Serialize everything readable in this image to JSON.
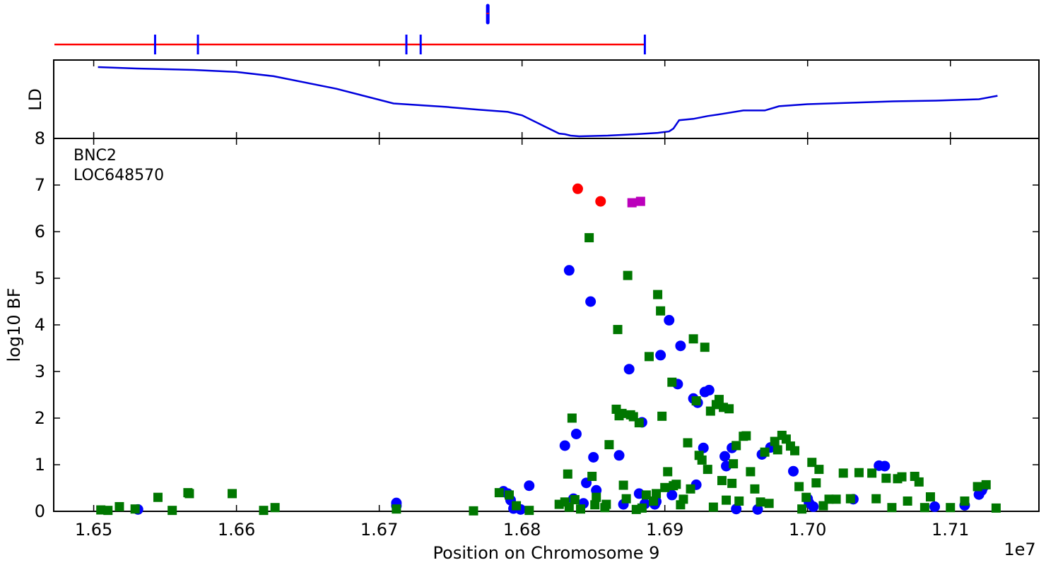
{
  "chart_data": {
    "type": "scatter",
    "xlabel": "Position on Chromosome 9",
    "x_offset_label": "1e7",
    "xlim": [
      1.6472,
      1.7162
    ],
    "x_ticks": [
      1.65,
      1.66,
      1.67,
      1.68,
      1.69,
      1.7,
      1.71
    ],
    "x_tick_labels": [
      "1.65",
      "1.66",
      "1.67",
      "1.68",
      "1.69",
      "1.70",
      "1.71"
    ],
    "genes": [
      "BNC2",
      "LOC648570"
    ],
    "gene_track": {
      "gene_span": [
        1.65,
        1.6886
      ],
      "gene_color": "#ff0000",
      "exon_color": "#0000ff",
      "exons": [
        1.6543,
        1.6573,
        1.6719,
        1.6729,
        1.6886
      ],
      "snp_marker_x": 1.6776
    },
    "ld_panel": {
      "ylabel": "LD",
      "ylim": [
        0,
        1
      ],
      "color": "#0000dd",
      "x": [
        1.6503,
        1.653,
        1.657,
        1.66,
        1.6626,
        1.667,
        1.671,
        1.6747,
        1.677,
        1.679,
        1.68,
        1.6815,
        1.6826,
        1.683,
        1.6834,
        1.684,
        1.686,
        1.688,
        1.6895,
        1.6903,
        1.6906,
        1.691,
        1.692,
        1.693,
        1.694,
        1.6955,
        1.697,
        1.698,
        1.7,
        1.703,
        1.706,
        1.709,
        1.712,
        1.7133
      ],
      "y": [
        1.0,
        0.98,
        0.96,
        0.93,
        0.87,
        0.69,
        0.48,
        0.43,
        0.39,
        0.36,
        0.31,
        0.16,
        0.05,
        0.04,
        0.02,
        0.01,
        0.02,
        0.04,
        0.06,
        0.08,
        0.12,
        0.24,
        0.26,
        0.3,
        0.33,
        0.38,
        0.38,
        0.44,
        0.47,
        0.49,
        0.51,
        0.52,
        0.54,
        0.59
      ]
    },
    "ylabel": "log10 BF",
    "ylim": [
      0,
      8
    ],
    "y_ticks": [
      0,
      1,
      2,
      3,
      4,
      5,
      6,
      7,
      8
    ],
    "series": [
      {
        "marker": "circle",
        "color": "#0000ff",
        "x": [
          1.6531,
          1.6712,
          1.6712,
          1.6787,
          1.679,
          1.6792,
          1.6794,
          1.6799,
          1.6805,
          1.683,
          1.6833,
          1.6836,
          1.6838,
          1.6843,
          1.6845,
          1.6848,
          1.685,
          1.6852,
          1.6868,
          1.6871,
          1.6875,
          1.6882,
          1.6884,
          1.6886,
          1.6893,
          1.6894,
          1.6897,
          1.6903,
          1.6905,
          1.6909,
          1.6911,
          1.692,
          1.6922,
          1.6923,
          1.6927,
          1.6928,
          1.6931,
          1.6942,
          1.6943,
          1.6947,
          1.695,
          1.6965,
          1.6968,
          1.6974,
          1.699,
          1.7,
          1.7001,
          1.7004,
          1.7032,
          1.705,
          1.7054,
          1.7089,
          1.711,
          1.712,
          1.7122,
          1.7123
        ],
        "y": [
          0.04,
          0.18,
          0.12,
          0.43,
          0.38,
          0.24,
          0.06,
          0.04,
          0.55,
          1.41,
          5.17,
          0.27,
          1.66,
          0.17,
          0.61,
          4.5,
          1.16,
          0.45,
          1.2,
          0.15,
          3.05,
          0.38,
          1.91,
          0.16,
          0.15,
          0.21,
          3.35,
          4.1,
          0.35,
          2.73,
          3.55,
          2.42,
          0.57,
          2.33,
          1.36,
          2.56,
          2.6,
          1.18,
          0.97,
          1.36,
          0.05,
          0.04,
          1.22,
          1.37,
          0.86,
          0.27,
          0.18,
          0.1,
          0.26,
          0.98,
          0.97,
          0.1,
          0.13,
          0.36,
          0.45,
          0.52
        ]
      },
      {
        "marker": "circle",
        "color": "#ff0000",
        "x": [
          1.6839,
          1.6855
        ],
        "y": [
          6.92,
          6.65
        ]
      },
      {
        "marker": "square",
        "color": "#bb00bb",
        "x": [
          1.6877,
          1.6883
        ],
        "y": [
          6.62,
          6.65
        ]
      },
      {
        "marker": "square",
        "color": "#007700",
        "x": [
          1.6505,
          1.651,
          1.6518,
          1.6529,
          1.6545,
          1.6555,
          1.6566,
          1.6567,
          1.6597,
          1.6619,
          1.6627,
          1.6712,
          1.6766,
          1.6784,
          1.6791,
          1.6796,
          1.6805,
          1.6826,
          1.683,
          1.6832,
          1.6833,
          1.6835,
          1.6837,
          1.6841,
          1.6847,
          1.6849,
          1.6851,
          1.6852,
          1.6858,
          1.6859,
          1.6861,
          1.6866,
          1.6867,
          1.6868,
          1.687,
          1.6871,
          1.6873,
          1.6874,
          1.6876,
          1.6878,
          1.688,
          1.6882,
          1.6884,
          1.6887,
          1.6889,
          1.6892,
          1.6894,
          1.6895,
          1.6897,
          1.6898,
          1.69,
          1.6902,
          1.6905,
          1.6906,
          1.6908,
          1.6911,
          1.6913,
          1.6916,
          1.6918,
          1.692,
          1.6922,
          1.6924,
          1.6926,
          1.6928,
          1.693,
          1.6932,
          1.6934,
          1.6936,
          1.6938,
          1.694,
          1.6941,
          1.6943,
          1.6945,
          1.6947,
          1.6948,
          1.695,
          1.6952,
          1.6955,
          1.6957,
          1.696,
          1.6963,
          1.6967,
          1.697,
          1.6973,
          1.6977,
          1.6979,
          1.6982,
          1.6985,
          1.6988,
          1.6991,
          1.6994,
          1.6996,
          1.6999,
          1.7003,
          1.7006,
          1.7008,
          1.7011,
          1.7015,
          1.702,
          1.7025,
          1.703,
          1.7036,
          1.7045,
          1.7048,
          1.7055,
          1.7059,
          1.7063,
          1.7066,
          1.707,
          1.7075,
          1.7078,
          1.7082,
          1.7086,
          1.71,
          1.711,
          1.7119,
          1.7125,
          1.7132
        ],
        "y": [
          0.03,
          0.02,
          0.1,
          0.05,
          0.3,
          0.02,
          0.4,
          0.38,
          0.38,
          0.02,
          0.08,
          0.05,
          0.01,
          0.4,
          0.35,
          0.12,
          0.02,
          0.15,
          0.2,
          0.8,
          0.09,
          2.0,
          0.25,
          0.05,
          5.87,
          0.75,
          0.14,
          0.3,
          0.08,
          0.15,
          1.43,
          2.19,
          3.9,
          2.05,
          2.1,
          0.56,
          0.27,
          5.06,
          2.07,
          2.03,
          0.04,
          1.9,
          0.07,
          0.35,
          3.32,
          0.22,
          0.38,
          4.65,
          4.3,
          2.04,
          0.51,
          0.85,
          2.77,
          0.55,
          0.58,
          0.14,
          0.26,
          1.47,
          0.48,
          3.7,
          2.37,
          1.2,
          1.1,
          3.52,
          0.9,
          2.15,
          0.09,
          2.29,
          2.4,
          0.66,
          2.23,
          0.24,
          2.2,
          0.6,
          1.02,
          1.41,
          0.22,
          1.61,
          1.62,
          0.85,
          0.48,
          0.2,
          1.27,
          0.17,
          1.5,
          1.32,
          1.63,
          1.55,
          1.4,
          1.3,
          0.53,
          0.05,
          0.3,
          1.05,
          0.61,
          0.9,
          0.12,
          0.26,
          0.26,
          0.82,
          0.27,
          0.83,
          0.82,
          0.27,
          0.71,
          0.08,
          0.7,
          0.74,
          0.22,
          0.75,
          0.63,
          0.08,
          0.31,
          0.08,
          0.22,
          0.53,
          0.57,
          0.07
        ]
      }
    ]
  }
}
